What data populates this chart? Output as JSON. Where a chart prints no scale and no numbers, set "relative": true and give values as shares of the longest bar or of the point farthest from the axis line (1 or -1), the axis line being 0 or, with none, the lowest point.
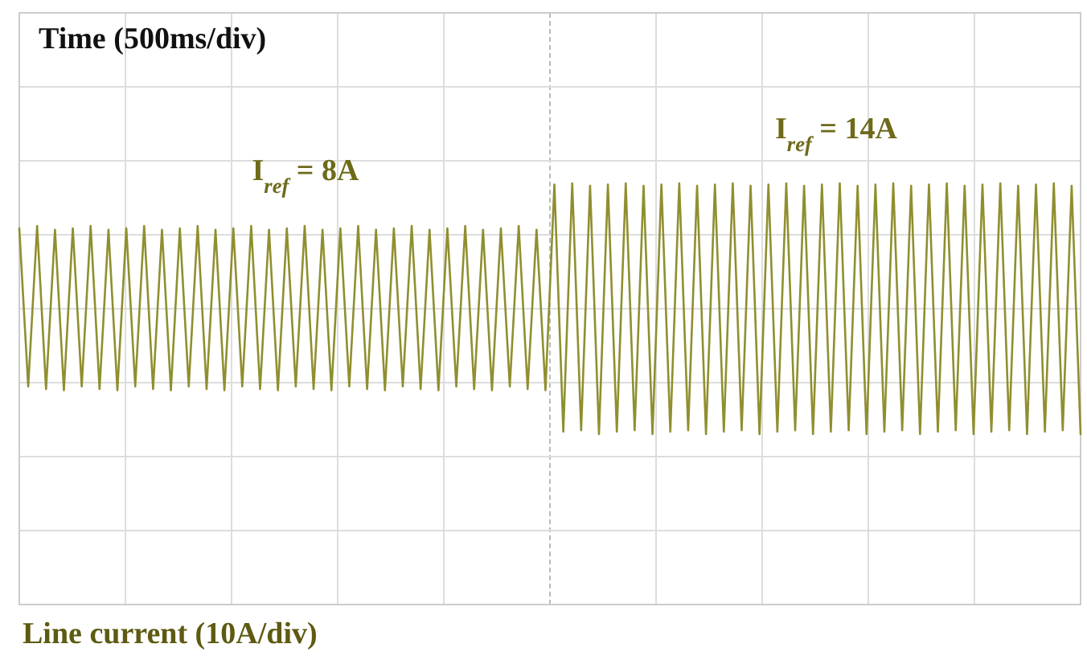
{
  "chart_data": {
    "type": "line",
    "relative": true,
    "title": "Time (500ms/div)",
    "annotations": [
      "I$_{ref}$ = 8A",
      "I$_{ref}$ = 14A",
      "Line current (10A/div)"
    ],
    "grid": true,
    "line_style": "solid",
    "categories": [
      null,
      null,
      null,
      null,
      null,
      null,
      null,
      null,
      null,
      null,
      null,
      null,
      null,
      null,
      null,
      null,
      null,
      null,
      null,
      null,
      null,
      null,
      null,
      null,
      null,
      null,
      null,
      null,
      null,
      null,
      null,
      null,
      null,
      null,
      null,
      null,
      null,
      null,
      null,
      null,
      null,
      null,
      null,
      null,
      null,
      null,
      null,
      null,
      null,
      null,
      null,
      null,
      null,
      null,
      null,
      null,
      null,
      null,
      null,
      null,
      null,
      null,
      null,
      null,
      null,
      null,
      null,
      null,
      null,
      null,
      null,
      null,
      null,
      null,
      null,
      null,
      null,
      null,
      null,
      null,
      null,
      null,
      null,
      null,
      null,
      null,
      null,
      null,
      null,
      null,
      null,
      null,
      null,
      null,
      null,
      null,
      null,
      null,
      null,
      null,
      null,
      null,
      null,
      null,
      null,
      null,
      null,
      null,
      null,
      null,
      null,
      null,
      null,
      null,
      null,
      null,
      null,
      null,
      null,
      null
    ],
    "series": [
      {
        "color": "#8f8f30",
        "values": [
          0.64,
          -0.62,
          0.66,
          -0.64,
          0.63,
          -0.65,
          0.64,
          -0.62,
          0.66,
          -0.64,
          0.63,
          -0.65,
          0.64,
          -0.62,
          0.66,
          -0.64,
          0.63,
          -0.65,
          0.64,
          -0.62,
          0.66,
          -0.64,
          0.63,
          -0.65,
          0.64,
          -0.62,
          0.66,
          -0.64,
          0.63,
          -0.65,
          0.64,
          -0.62,
          0.66,
          -0.64,
          0.63,
          -0.65,
          0.64,
          -0.62,
          0.66,
          -0.64,
          0.63,
          -0.65,
          0.64,
          -0.62,
          0.66,
          -0.64,
          0.63,
          -0.65,
          0.64,
          -0.62,
          0.66,
          -0.64,
          0.63,
          -0.65,
          0.64,
          -0.62,
          0.66,
          -0.64,
          0.63,
          -0.65,
          0.99,
          -0.98,
          1,
          -0.97,
          0.98,
          -1,
          0.99,
          -0.98,
          1,
          -0.97,
          0.98,
          -1,
          0.99,
          -0.98,
          1,
          -0.97,
          0.98,
          -1,
          0.99,
          -0.98,
          1,
          -0.97,
          0.98,
          -1,
          0.99,
          -0.98,
          1,
          -0.97,
          0.98,
          -1,
          0.99,
          -0.98,
          1,
          -0.97,
          0.98,
          -1,
          0.99,
          -0.98,
          1,
          -0.97,
          0.98,
          -1,
          0.99,
          -0.98,
          1,
          -0.97,
          0.98,
          -1,
          0.99,
          -0.98,
          1,
          -0.97,
          0.98,
          -1,
          0.99,
          -0.98,
          1,
          -0.97,
          0.98,
          -1
        ]
      }
    ]
  }
}
